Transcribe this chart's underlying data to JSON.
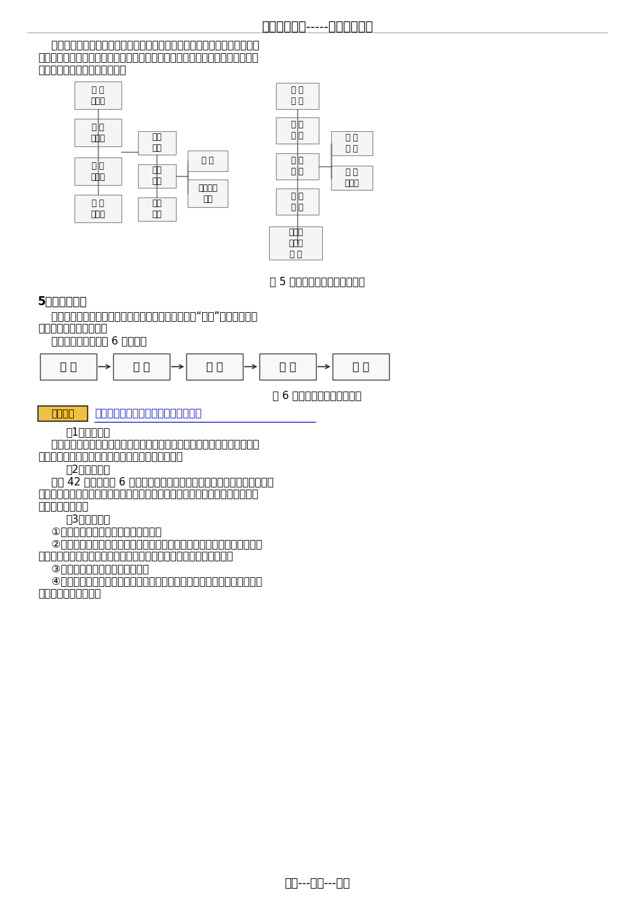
{
  "header_text": "精选优质文档-----倾情为你奉上",
  "para1_1": "    针对同学们的畅想，要求大家提出如何使饮食企业在竞争中求胜的具体设想",
  "para1_2": "与措施；同学们用卡片填上措施的关键词在张贴板上展示；教师与学生一起分析",
  "para1_3": "每条措施的可行性。如图所示：",
  "fig5_caption": "图 5 饮食企业求胜的设想与措施",
  "section5_title": "5．项目教学法",
  "section5_para1": "    项目教学法是师生通过共同实施一个相对独立完整的“项目”工作而开展教",
  "section5_para2": "学活动的一种教学方法。",
  "section5_para3": "    其实施程序是（如图 6 所示）：",
  "fig6_caption": "图 6 项目教学法教学实施程序",
  "flow_steps": [
    "确 定",
    "制 订",
    "实 施",
    "检 查",
    "推 广"
  ],
  "example_label": "教学示例",
  "example_title": "《电子技术基础》项目教学法展示实例",
  "ex1_title": "（1）确定项目",
  "ex1_body1": "    普通直流电源具有输出电压不稳定及输出电压不可调节等缺点。设想制作一",
  "ex1_body2": "个电压稳定而且可以在一定范围内调节的直流电源。",
  "ex2_title": "（2）制定计划",
  "ex2_body1": "    全班 42 名学生分成 6 组。每组同学根据课本中所学到的串联稳压电路，通",
  "ex2_body2": "过分析计算，选择不同的元器件，在印刷线路板上进行焊接，最终得到不同输出",
  "ex2_body3": "电压的直流电源。",
  "ex3_title": "（3）实施计划",
  "ex3_line1": "    ①教师介绍电路组成及分析工作原理。",
  "ex3_line2": "    ②学生通过分析计算各相关元件的参数，自行选择合适的变压器、二极管、",
  "ex3_line3": "三极管、稳压管、电阻、电位器等。（教师提供多种类型的上述元件）",
  "ex3_line4": "    ③学生熟悉印刷线路板及接线图。",
  "ex3_line5": "    ④学生按各组成部分开始进行焊接，一部分完成后，用万用表及示波器及时",
  "ex3_line6": "观察，检验是否有误。",
  "footer_text": "专心---专注---专业",
  "bg_color": "#ffffff"
}
